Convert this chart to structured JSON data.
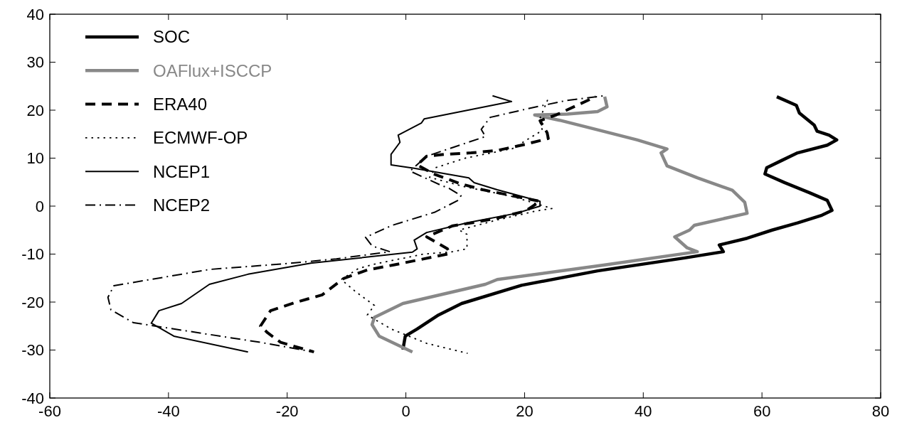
{
  "chart_data": {
    "type": "line",
    "xlim": [
      -60,
      80
    ],
    "ylim": [
      -40,
      40
    ],
    "xticks": [
      -60,
      -40,
      -20,
      0,
      20,
      40,
      60,
      80
    ],
    "yticks": [
      -40,
      -30,
      -20,
      -10,
      0,
      10,
      20,
      30,
      40
    ],
    "legend": "top left",
    "series": [
      {
        "name": "SOC",
        "color": "#000000",
        "line_style": "solid",
        "x": [
          62.5,
          65.8,
          66.3,
          68.8,
          69.3,
          71.3,
          72.6,
          71,
          66,
          63.3,
          60.8,
          60.5,
          63.8,
          68,
          71,
          71.8,
          70.1,
          66,
          61.7,
          57.5,
          52.8,
          53.5,
          47,
          32.3,
          19.5,
          9.4,
          5.5,
          1.9,
          -0.1,
          -0.5
        ],
        "values": [
          22.8,
          21,
          19.4,
          16.9,
          15.6,
          14.8,
          13.8,
          12.7,
          11.1,
          9.5,
          8,
          6.7,
          4.9,
          2.8,
          1.2,
          -0.9,
          -1.9,
          -3.5,
          -5,
          -6.7,
          -8.1,
          -9.5,
          -10.8,
          -13.5,
          -16.5,
          -20.3,
          -22.7,
          -25.6,
          -27.1,
          -29.9
        ]
      },
      {
        "name": "OAFlux+ISCCP",
        "color": "#888888",
        "line_style": "solid",
        "x": [
          33.5,
          33.9,
          32.3,
          27.2,
          21.7,
          25.9,
          32.3,
          39,
          44,
          43,
          44,
          49.1,
          55,
          57.1,
          57.5,
          48.6,
          47.8,
          45.3,
          47.4,
          49.1,
          33.3,
          15.4,
          13.4,
          -0.5,
          -5.3,
          -5.7,
          -4.5,
          1.1
        ],
        "values": [
          22.8,
          20.7,
          19.7,
          19.2,
          19,
          17.9,
          15.9,
          13.8,
          11.9,
          11.1,
          8.4,
          5.9,
          3.3,
          0.8,
          -1.5,
          -4,
          -5,
          -6.4,
          -8.7,
          -9.5,
          -12.3,
          -15.3,
          -16.3,
          -20.3,
          -23.2,
          -24.7,
          -27.1,
          -30.4
        ]
      },
      {
        "name": "ERA40",
        "color": "#000000",
        "line_style": "dashed",
        "x": [
          32,
          25.3,
          22.6,
          23.8,
          24,
          20.2,
          15.4,
          11,
          6.7,
          3.5,
          1.9,
          4.7,
          9.1,
          13,
          17.8,
          22.6,
          20.2,
          15.4,
          11.5,
          7.9,
          3.5,
          7,
          7.4,
          2.6,
          -2.2,
          -6.5,
          -10.5,
          -14.1,
          -18.4,
          -22.8,
          -24.5,
          -23.3,
          -21.1,
          -15.5
        ],
        "values": [
          22.8,
          19,
          17.8,
          15.3,
          14.1,
          12.9,
          11.6,
          11.1,
          10.8,
          10.4,
          8.6,
          6.7,
          4.7,
          3.4,
          2.2,
          1,
          -1,
          -2.5,
          -3.4,
          -4.1,
          -6.4,
          -8.9,
          -9.9,
          -11.1,
          -12.3,
          -13.3,
          -15.1,
          -18.5,
          -20,
          -21.8,
          -25,
          -26.4,
          -28.4,
          -30.4
        ]
      },
      {
        "name": "ECMWF-OP",
        "color": "#000000",
        "line_style": "dotted",
        "x": [
          24,
          22.5,
          23,
          18,
          10,
          5,
          4,
          10,
          18,
          24.6,
          22,
          15,
          9,
          10.3,
          10.3,
          8,
          3,
          -1,
          -5,
          -8,
          -10.9,
          -8.5,
          -5.3,
          -6.5,
          -2.5,
          3.5,
          10.4
        ],
        "values": [
          22.5,
          18,
          15.8,
          12,
          10,
          8,
          6,
          4,
          2,
          -0.5,
          -1,
          -3,
          -5,
          -5.9,
          -8.9,
          -9.5,
          -10,
          -11,
          -12,
          -13,
          -15.3,
          -17.8,
          -20.7,
          -22.7,
          -25.6,
          -28.6,
          -30.7
        ]
      },
      {
        "name": "NCEP1",
        "color": "#000000",
        "line_style": "solid",
        "x": [
          14.6,
          17.8,
          3.1,
          2.6,
          -1.3,
          -1,
          -2.5,
          -2.5,
          1.4,
          10.6,
          11.5,
          15.4,
          22.6,
          22.6,
          18.6,
          10.6,
          3.5,
          1.4,
          1.9,
          1.1,
          -16,
          -26.6,
          -33.1,
          -37.8,
          -41.6,
          -42.9,
          -39.1,
          -26.6
        ],
        "values": [
          23,
          21.8,
          18.2,
          17.3,
          14.8,
          13.3,
          10.8,
          8.6,
          7.9,
          5.9,
          4.9,
          3.4,
          1,
          0,
          -1.5,
          -3.4,
          -5.5,
          -7.1,
          -8.9,
          -9.6,
          -11.9,
          -14.2,
          -16.3,
          -20.3,
          -21.8,
          -24.4,
          -27.1,
          -30.4
        ]
      },
      {
        "name": "NCEP2",
        "color": "#000000",
        "line_style": "dashdot",
        "x": [
          33.3,
          27,
          21.6,
          14.2,
          12.7,
          13.4,
          3.5,
          0.7,
          6,
          7.3,
          9.3,
          8.8,
          4.8,
          -2.3,
          -6.8,
          -5.7,
          -2.7,
          -11.7,
          -20.3,
          -33.1,
          -49.2,
          -50.2,
          -49.7,
          -45.9,
          -24.5,
          -15.5
        ],
        "values": [
          23,
          22,
          20.6,
          18.5,
          16,
          14.5,
          10.4,
          7.3,
          4.3,
          3.7,
          2.2,
          1.2,
          -1.3,
          -4,
          -6.5,
          -8.3,
          -9.5,
          -11,
          -12,
          -13.2,
          -16.6,
          -19,
          -21.6,
          -24.3,
          -28.4,
          -30.4
        ]
      }
    ]
  }
}
